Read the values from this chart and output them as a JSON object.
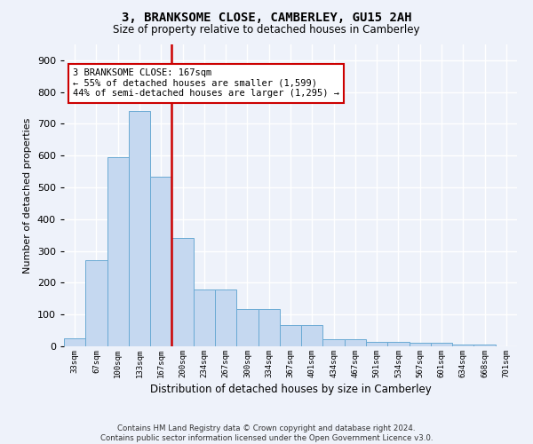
{
  "title": "3, BRANKSOME CLOSE, CAMBERLEY, GU15 2AH",
  "subtitle": "Size of property relative to detached houses in Camberley",
  "xlabel": "Distribution of detached houses by size in Camberley",
  "ylabel": "Number of detached properties",
  "bar_labels": [
    "33sqm",
    "67sqm",
    "100sqm",
    "133sqm",
    "167sqm",
    "200sqm",
    "234sqm",
    "267sqm",
    "300sqm",
    "334sqm",
    "367sqm",
    "401sqm",
    "434sqm",
    "467sqm",
    "501sqm",
    "534sqm",
    "567sqm",
    "601sqm",
    "634sqm",
    "668sqm",
    "701sqm"
  ],
  "bar_values": [
    25,
    270,
    595,
    740,
    535,
    340,
    178,
    178,
    118,
    118,
    68,
    68,
    22,
    22,
    15,
    15,
    10,
    10,
    5,
    5,
    0
  ],
  "bar_color": "#c5d8f0",
  "bar_edge_color": "#6aaad4",
  "property_line_color": "#cc0000",
  "annotation_text": "3 BRANKSOME CLOSE: 167sqm\n← 55% of detached houses are smaller (1,599)\n44% of semi-detached houses are larger (1,295) →",
  "annotation_box_color": "#cc0000",
  "ylim": [
    0,
    950
  ],
  "yticks": [
    0,
    100,
    200,
    300,
    400,
    500,
    600,
    700,
    800,
    900
  ],
  "footer_line1": "Contains HM Land Registry data © Crown copyright and database right 2024.",
  "footer_line2": "Contains public sector information licensed under the Open Government Licence v3.0.",
  "bg_color": "#eef2fa",
  "plot_bg_color": "#eef2fa"
}
